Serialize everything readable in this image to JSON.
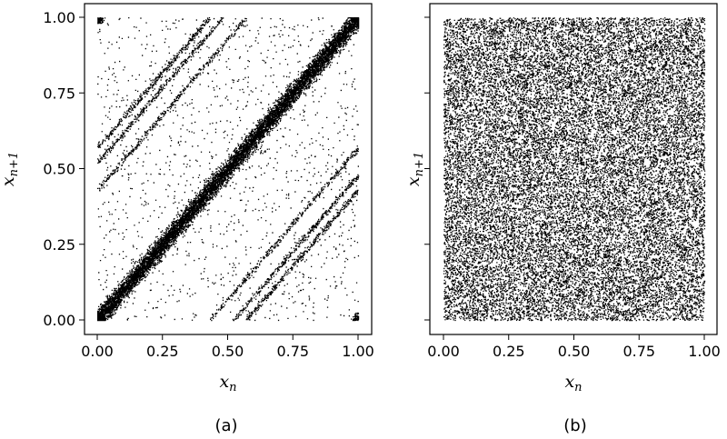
{
  "chart_data": [
    {
      "type": "scatter",
      "panel_label": "(a)",
      "xlabel": {
        "base": "x",
        "sub": "n"
      },
      "ylabel": {
        "base": "x",
        "sub": "n+1"
      },
      "xlim": [
        0,
        1
      ],
      "ylim": [
        0,
        1
      ],
      "xticks": [
        "0.00",
        "0.25",
        "0.50",
        "0.75",
        "1.00"
      ],
      "yticks": [
        "0.00",
        "0.25",
        "0.50",
        "0.75",
        "1.00"
      ],
      "show_ytick_labels": true,
      "grid": false,
      "point_color": "#000000",
      "structure": {
        "diagonal": {
          "from": [
            0,
            0
          ],
          "to": [
            1,
            1
          ]
        },
        "upper_lines": [
          {
            "from": [
              0,
              0.43
            ],
            "to": [
              0.57,
              1
            ]
          },
          {
            "from": [
              0,
              0.52
            ],
            "to": [
              0.48,
              1
            ]
          },
          {
            "from": [
              0,
              0.57
            ],
            "to": [
              0.43,
              1
            ]
          }
        ],
        "lower_lines": [
          {
            "from": [
              0.43,
              0
            ],
            "to": [
              1,
              0.57
            ]
          },
          {
            "from": [
              0.52,
              0
            ],
            "to": [
              1,
              0.48
            ]
          },
          {
            "from": [
              0.57,
              0
            ],
            "to": [
              1,
              0.43
            ]
          }
        ],
        "corner_clusters": [
          [
            0,
            1
          ],
          [
            1,
            0
          ],
          [
            0,
            0
          ],
          [
            1,
            1
          ]
        ],
        "background": "sparse uniform scatter"
      }
    },
    {
      "type": "scatter",
      "panel_label": "(b)",
      "xlabel": {
        "base": "x",
        "sub": "n"
      },
      "ylabel": {
        "base": "x",
        "sub": "n+1"
      },
      "xlim": [
        0,
        1
      ],
      "ylim": [
        0,
        1
      ],
      "xticks": [
        "0.00",
        "0.25",
        "0.50",
        "0.75",
        "1.00"
      ],
      "yticks": [
        "",
        "",
        "",
        "",
        ""
      ],
      "show_ytick_labels": false,
      "grid": false,
      "point_color": "#000000",
      "structure": {
        "background": "dense uniform scatter over the unit square"
      }
    }
  ]
}
